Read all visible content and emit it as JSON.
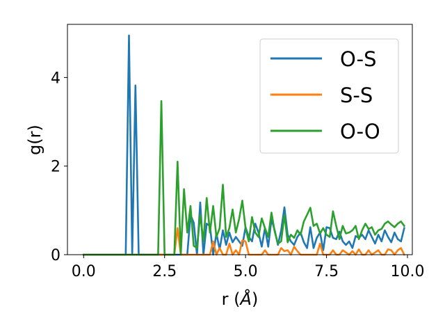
{
  "chart_data": {
    "type": "line",
    "title": "",
    "xlabel": "r (",
    "xlabel_unit": "Å",
    "xlabel_close": ")",
    "ylabel": "g(r)",
    "xlim": [
      -0.5,
      10.15
    ],
    "ylim": [
      0,
      5.2
    ],
    "xticks": [
      0.0,
      2.5,
      5.0,
      7.5,
      10.0
    ],
    "xtick_labels": [
      "0.0",
      "2.5",
      "5.0",
      "7.5",
      "10.0"
    ],
    "yticks": [
      0,
      2,
      4
    ],
    "ytick_labels": [
      "0",
      "2",
      "4"
    ],
    "grid": false,
    "legend_position": "top-right",
    "series": [
      {
        "name": "O-S",
        "color": "#1f77b4",
        "x": [
          0,
          0.1,
          0.2,
          0.3,
          0.4,
          0.5,
          0.6,
          0.7,
          0.8,
          0.9,
          1.0,
          1.1,
          1.2,
          1.3,
          1.4,
          1.5,
          1.6,
          1.7,
          1.8,
          1.9,
          2.0,
          2.1,
          2.2,
          2.3,
          2.4,
          2.5,
          2.6,
          2.7,
          2.8,
          2.9,
          3.0,
          3.1,
          3.2,
          3.3,
          3.4,
          3.5,
          3.6,
          3.7,
          3.8,
          3.9,
          4.0,
          4.1,
          4.2,
          4.3,
          4.4,
          4.5,
          4.6,
          4.7,
          4.8,
          4.9,
          5.0,
          5.1,
          5.2,
          5.3,
          5.4,
          5.5,
          5.6,
          5.7,
          5.8,
          5.9,
          6.0,
          6.1,
          6.2,
          6.3,
          6.4,
          6.5,
          6.6,
          6.7,
          6.8,
          6.9,
          7.0,
          7.1,
          7.2,
          7.3,
          7.4,
          7.5,
          7.6,
          7.7,
          7.8,
          7.9,
          8.0,
          8.1,
          8.2,
          8.3,
          8.4,
          8.5,
          8.6,
          8.7,
          8.8,
          8.9,
          9.0,
          9.1,
          9.2,
          9.3,
          9.4,
          9.5,
          9.6,
          9.7,
          9.8,
          9.9
        ],
        "y": [
          0,
          0,
          0,
          0,
          0,
          0,
          0,
          0,
          0,
          0,
          0,
          0,
          0,
          0,
          4.95,
          0,
          3.82,
          0,
          0,
          0,
          0,
          0,
          0,
          0,
          0,
          0,
          0,
          0,
          0,
          0,
          0,
          0,
          0,
          0.9,
          0.72,
          0,
          1.18,
          0,
          0.7,
          0.65,
          0,
          0.48,
          0.12,
          0.55,
          0.22,
          0.5,
          0.28,
          0.4,
          0.3,
          0.2,
          0.62,
          0.4,
          0.3,
          0.7,
          0.5,
          0.18,
          0.6,
          0.18,
          0.8,
          0.55,
          0.22,
          0.55,
          1.07,
          0.45,
          0.3,
          0.22,
          0.4,
          0.5,
          0.28,
          0.15,
          0.62,
          0.15,
          0.38,
          0.5,
          0.1,
          0.62,
          0.6,
          0.38,
          0.35,
          0.52,
          0.3,
          0.22,
          0.3,
          0.15,
          0.42,
          0.38,
          0.45,
          0.35,
          0.55,
          0.4,
          0.25,
          0.45,
          0.3,
          0.55,
          0.4,
          0.28,
          0.5,
          0.35,
          0.3,
          0.6
        ]
      },
      {
        "name": "S-S",
        "color": "#ff7f0e",
        "x": [
          0,
          0.1,
          0.2,
          0.3,
          0.4,
          0.5,
          0.6,
          0.7,
          0.8,
          0.9,
          1.0,
          1.1,
          1.2,
          1.3,
          1.4,
          1.5,
          1.6,
          1.7,
          1.8,
          1.9,
          2.0,
          2.1,
          2.2,
          2.3,
          2.4,
          2.5,
          2.6,
          2.7,
          2.8,
          2.9,
          3.0,
          3.1,
          3.2,
          3.3,
          3.4,
          3.5,
          3.6,
          3.7,
          3.8,
          3.9,
          4.0,
          4.1,
          4.2,
          4.3,
          4.4,
          4.5,
          4.6,
          4.7,
          4.8,
          4.9,
          5.0,
          5.1,
          5.2,
          5.3,
          5.4,
          5.5,
          5.6,
          5.7,
          5.8,
          5.9,
          6.0,
          6.1,
          6.2,
          6.3,
          6.4,
          6.5,
          6.6,
          6.7,
          6.8,
          6.9,
          7.0,
          7.1,
          7.2,
          7.3,
          7.4,
          7.5,
          7.6,
          7.7,
          7.8,
          7.9,
          8.0,
          8.1,
          8.2,
          8.3,
          8.4,
          8.5,
          8.6,
          8.7,
          8.8,
          8.9,
          9.0,
          9.1,
          9.2,
          9.3,
          9.4,
          9.5,
          9.6,
          9.7,
          9.8,
          9.9
        ],
        "y": [
          0,
          0,
          0,
          0,
          0,
          0,
          0,
          0,
          0,
          0,
          0,
          0,
          0,
          0,
          0,
          0,
          0,
          0,
          0,
          0,
          0,
          0,
          0,
          0,
          0,
          0,
          0,
          0,
          0,
          0.6,
          0,
          0,
          0,
          0,
          0,
          0,
          0,
          0,
          0,
          0,
          0.3,
          0,
          0.15,
          0,
          0,
          0.25,
          0,
          0.1,
          0,
          0.32,
          0.3,
          0,
          0,
          0,
          0,
          0,
          0.1,
          0,
          0,
          0,
          0,
          0.15,
          0.08,
          0.1,
          0,
          0.18,
          0.08,
          0,
          0,
          0,
          0,
          0,
          0,
          0.25,
          0,
          0,
          0,
          0.1,
          0,
          0,
          0.1,
          0.05,
          0,
          0.08,
          0,
          0.12,
          0,
          0,
          0.1,
          0,
          0.05,
          0.1,
          0,
          0,
          0.12,
          0.1,
          0,
          0.1,
          0.15,
          0
        ]
      },
      {
        "name": "O-O",
        "color": "#2ca02c",
        "x": [
          0,
          0.1,
          0.2,
          0.3,
          0.4,
          0.5,
          0.6,
          0.7,
          0.8,
          0.9,
          1.0,
          1.1,
          1.2,
          1.3,
          1.4,
          1.5,
          1.6,
          1.7,
          1.8,
          1.9,
          2.0,
          2.1,
          2.2,
          2.3,
          2.4,
          2.5,
          2.6,
          2.7,
          2.8,
          2.9,
          3.0,
          3.1,
          3.2,
          3.3,
          3.4,
          3.5,
          3.6,
          3.7,
          3.8,
          3.9,
          4.0,
          4.1,
          4.2,
          4.3,
          4.4,
          4.5,
          4.6,
          4.7,
          4.8,
          4.9,
          5.0,
          5.1,
          5.2,
          5.3,
          5.4,
          5.5,
          5.6,
          5.7,
          5.8,
          5.9,
          6.0,
          6.1,
          6.2,
          6.3,
          6.4,
          6.5,
          6.6,
          6.7,
          6.8,
          6.9,
          7.0,
          7.1,
          7.2,
          7.3,
          7.4,
          7.5,
          7.6,
          7.7,
          7.8,
          7.9,
          8.0,
          8.1,
          8.2,
          8.3,
          8.4,
          8.5,
          8.6,
          8.7,
          8.8,
          8.9,
          9.0,
          9.1,
          9.2,
          9.3,
          9.4,
          9.5,
          9.6,
          9.7,
          9.8,
          9.9
        ],
        "y": [
          0,
          0,
          0,
          0,
          0,
          0,
          0,
          0,
          0,
          0,
          0,
          0,
          0,
          0,
          0,
          0,
          0,
          0,
          0,
          0,
          0,
          0,
          0,
          0,
          3.47,
          0,
          0,
          0,
          0,
          2.1,
          0,
          1.48,
          0.5,
          1.1,
          0.2,
          0.15,
          0.9,
          0.3,
          1.28,
          0.5,
          1.1,
          0.4,
          0.6,
          1.58,
          0.4,
          0.6,
          1.02,
          0.5,
          0.8,
          1.22,
          0.6,
          0.3,
          0.85,
          0.5,
          0.4,
          0.82,
          0.6,
          0.4,
          0.95,
          0.52,
          0.25,
          0.3,
          0.9,
          0.28,
          0.45,
          0.38,
          0.55,
          0.45,
          0.75,
          0.9,
          1.06,
          0.65,
          0.7,
          0.48,
          0.6,
          0.45,
          0.4,
          0.98,
          0.65,
          0.35,
          0.65,
          0.48,
          0.5,
          0.55,
          0.65,
          0.35,
          0.55,
          0.7,
          0.58,
          0.62,
          0.45,
          0.55,
          0.58,
          0.7,
          0.75,
          0.68,
          0.62,
          0.7,
          0.75,
          0.65
        ]
      }
    ]
  }
}
